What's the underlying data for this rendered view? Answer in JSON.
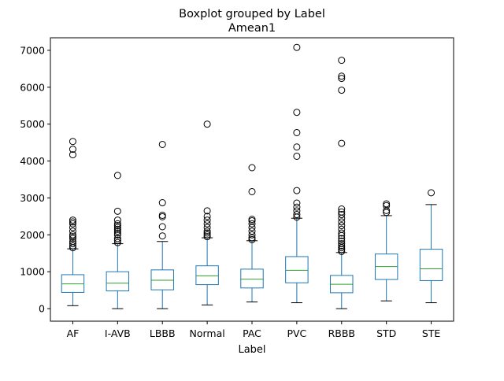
{
  "chart_data": {
    "type": "boxplot",
    "title_line1": "Boxplot grouped by Label",
    "title_line2": "Amean1",
    "xlabel": "Label",
    "ylabel": "",
    "ylim": [
      -340,
      7340
    ],
    "yticks": [
      0,
      1000,
      2000,
      3000,
      4000,
      5000,
      6000,
      7000
    ],
    "grid": false,
    "colors": {
      "box": "#1f77b4",
      "median": "#2ca02c",
      "whisker": "#000000",
      "flier": "#000000"
    },
    "categories": [
      "AF",
      "I-AVB",
      "LBBB",
      "Normal",
      "PAC",
      "PVC",
      "RBBB",
      "STD",
      "STE"
    ],
    "boxes": [
      {
        "label": "AF",
        "whislo": 80,
        "q1": 440,
        "med": 670,
        "q3": 920,
        "whishi": 1620,
        "fliers": [
          1650,
          1700,
          1760,
          1820,
          1900,
          1950,
          2000,
          2100,
          2200,
          2300,
          2350,
          2400,
          4170,
          4320,
          4530
        ]
      },
      {
        "label": "I-AVB",
        "whislo": 0,
        "q1": 480,
        "med": 690,
        "q3": 1000,
        "whishi": 1760,
        "fliers": [
          1790,
          1850,
          1900,
          2000,
          2050,
          2100,
          2150,
          2200,
          2250,
          2300,
          2400,
          2640,
          3610
        ]
      },
      {
        "label": "LBBB",
        "whislo": 0,
        "q1": 510,
        "med": 770,
        "q3": 1050,
        "whishi": 1820,
        "fliers": [
          1970,
          2220,
          2490,
          2530,
          2870,
          4450
        ]
      },
      {
        "label": "Normal",
        "whislo": 100,
        "q1": 650,
        "med": 890,
        "q3": 1160,
        "whishi": 1920,
        "fliers": [
          1950,
          2000,
          2050,
          2100,
          2200,
          2300,
          2400,
          2500,
          2650,
          5000
        ]
      },
      {
        "label": "PAC",
        "whislo": 180,
        "q1": 560,
        "med": 800,
        "q3": 1070,
        "whishi": 1840,
        "fliers": [
          1870,
          1920,
          2000,
          2100,
          2200,
          2300,
          2380,
          2420,
          3170,
          3820
        ]
      },
      {
        "label": "PVC",
        "whislo": 160,
        "q1": 700,
        "med": 1040,
        "q3": 1410,
        "whishi": 2450,
        "fliers": [
          2480,
          2550,
          2650,
          2750,
          2860,
          3200,
          4130,
          4380,
          4770,
          5320,
          7080
        ]
      },
      {
        "label": "RBBB",
        "whislo": 0,
        "q1": 430,
        "med": 660,
        "q3": 900,
        "whishi": 1520,
        "fliers": [
          1550,
          1600,
          1650,
          1700,
          1760,
          1830,
          1900,
          1980,
          2050,
          2150,
          2250,
          2350,
          2450,
          2550,
          2620,
          2700,
          4480,
          5920,
          6240,
          6300,
          6730
        ]
      },
      {
        "label": "STD",
        "whislo": 210,
        "q1": 790,
        "med": 1140,
        "q3": 1480,
        "whishi": 2520,
        "fliers": [
          2610,
          2660,
          2790,
          2840
        ]
      },
      {
        "label": "STE",
        "whislo": 160,
        "q1": 760,
        "med": 1080,
        "q3": 1610,
        "whishi": 2820,
        "fliers": [
          3140
        ]
      }
    ]
  }
}
